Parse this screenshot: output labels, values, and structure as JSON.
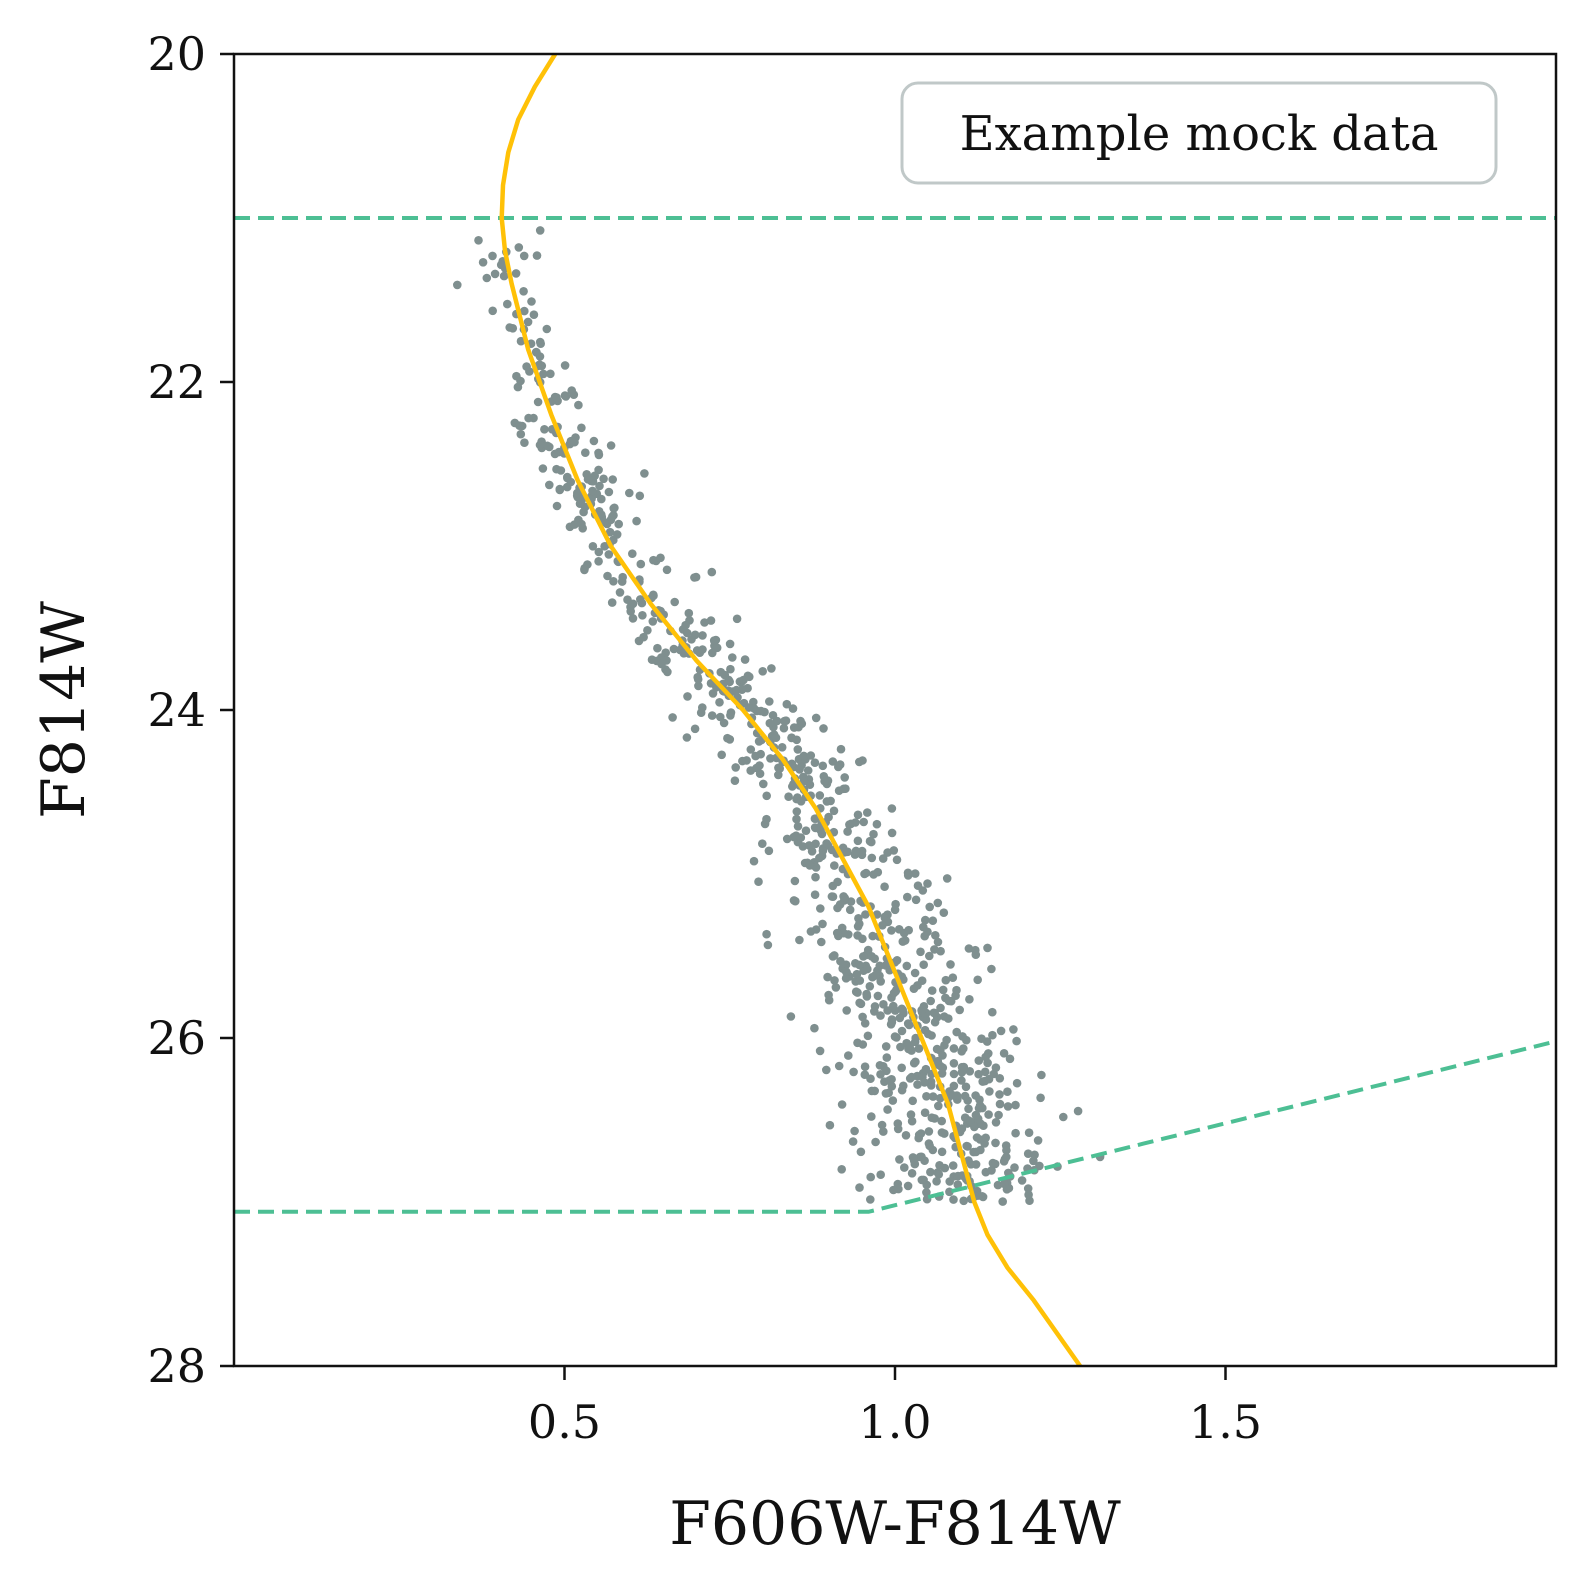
{
  "chart_data": {
    "type": "scatter",
    "xlabel": "F606W-F814W",
    "ylabel": "F814W",
    "xlim": [
      0.0,
      2.0
    ],
    "ylim": [
      28,
      20
    ],
    "y_inverted": true,
    "xticks": [
      0.5,
      1.0,
      1.5
    ],
    "xtick_labels": [
      "0.5",
      "1.0",
      "1.5"
    ],
    "yticks": [
      20,
      22,
      24,
      26,
      28
    ],
    "ytick_labels": [
      "20",
      "22",
      "24",
      "26",
      "28"
    ],
    "grid": false,
    "legend": {
      "text": "Example mock data",
      "placement": "top-right"
    },
    "colors": {
      "points": "#7f8f8f",
      "isochrone": "#ffc107",
      "limits": "#4dbf94"
    },
    "isochrone": {
      "x": [
        0.486,
        0.455,
        0.43,
        0.415,
        0.407,
        0.405,
        0.41,
        0.42,
        0.445,
        0.48,
        0.52,
        0.57,
        0.63,
        0.7,
        0.77,
        0.83,
        0.88,
        0.92,
        0.96,
        0.99,
        1.02,
        1.05,
        1.08,
        1.1,
        1.12,
        1.14,
        1.17,
        1.21,
        1.28
      ],
      "y": [
        20.0,
        20.2,
        20.4,
        20.6,
        20.8,
        21.0,
        21.2,
        21.4,
        21.8,
        22.2,
        22.6,
        23.0,
        23.35,
        23.7,
        24.0,
        24.3,
        24.6,
        24.9,
        25.2,
        25.5,
        25.8,
        26.1,
        26.4,
        26.7,
        27.0,
        27.2,
        27.4,
        27.6,
        28.0
      ]
    },
    "bright_limit": {
      "x": [
        0.0,
        2.0
      ],
      "y": [
        21.0,
        21.0
      ]
    },
    "faint_limit": {
      "x": [
        0.0,
        0.96,
        2.0
      ],
      "y": [
        27.06,
        27.06,
        26.02
      ]
    },
    "scatter_model": {
      "n_points": 950,
      "mag_range": [
        21.0,
        27.0
      ],
      "color_spread_bright": 0.02,
      "color_spread_faint": 0.075,
      "note_mag_distribution": "increasing toward faint magnitudes"
    }
  }
}
